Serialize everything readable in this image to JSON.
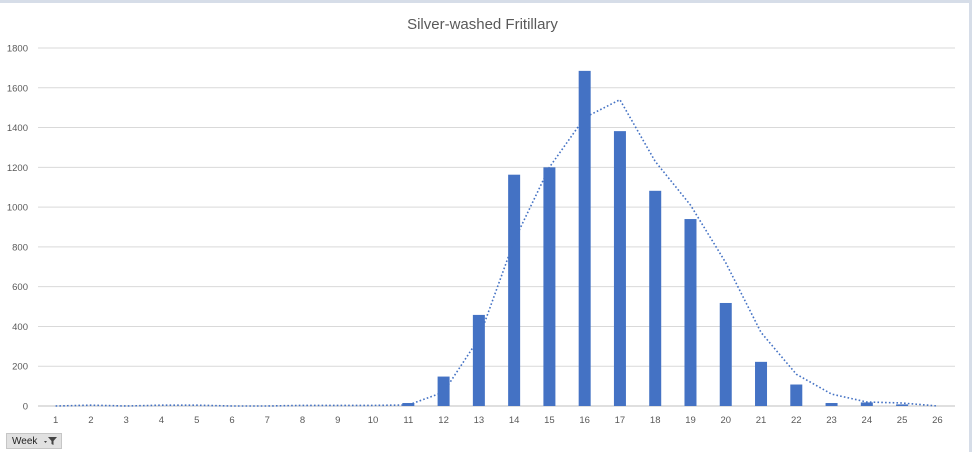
{
  "chart_data": {
    "type": "bar",
    "title": "Silver-washed Fritillary",
    "categories": [
      "1",
      "2",
      "3",
      "4",
      "5",
      "6",
      "7",
      "8",
      "9",
      "10",
      "11",
      "12",
      "13",
      "14",
      "15",
      "16",
      "17",
      "18",
      "19",
      "20",
      "21",
      "22",
      "23",
      "24",
      "25",
      "26"
    ],
    "series": [
      {
        "values": [
          0,
          0,
          0,
          0,
          0,
          0,
          0,
          0,
          0,
          0,
          15,
          148,
          458,
          1163,
          1200,
          1685,
          1382,
          1082,
          940,
          518,
          222,
          108,
          15,
          18,
          8,
          0
        ],
        "color": "#4472c4"
      }
    ],
    "trendline": {
      "style": "dotted",
      "color": "#4472c4",
      "values": [
        0,
        4,
        0,
        4,
        4,
        0,
        0,
        3,
        3,
        3,
        5,
        70,
        340,
        830,
        1200,
        1450,
        1540,
        1230,
        1010,
        720,
        370,
        160,
        60,
        20,
        15,
        0
      ]
    },
    "ylim": [
      0,
      1800
    ],
    "yticks": [
      0,
      200,
      400,
      600,
      800,
      1000,
      1200,
      1400,
      1600,
      1800
    ],
    "grid": true,
    "legend": "none"
  },
  "field_button": {
    "label": "Week",
    "icon": "filter-dropdown-icon"
  }
}
